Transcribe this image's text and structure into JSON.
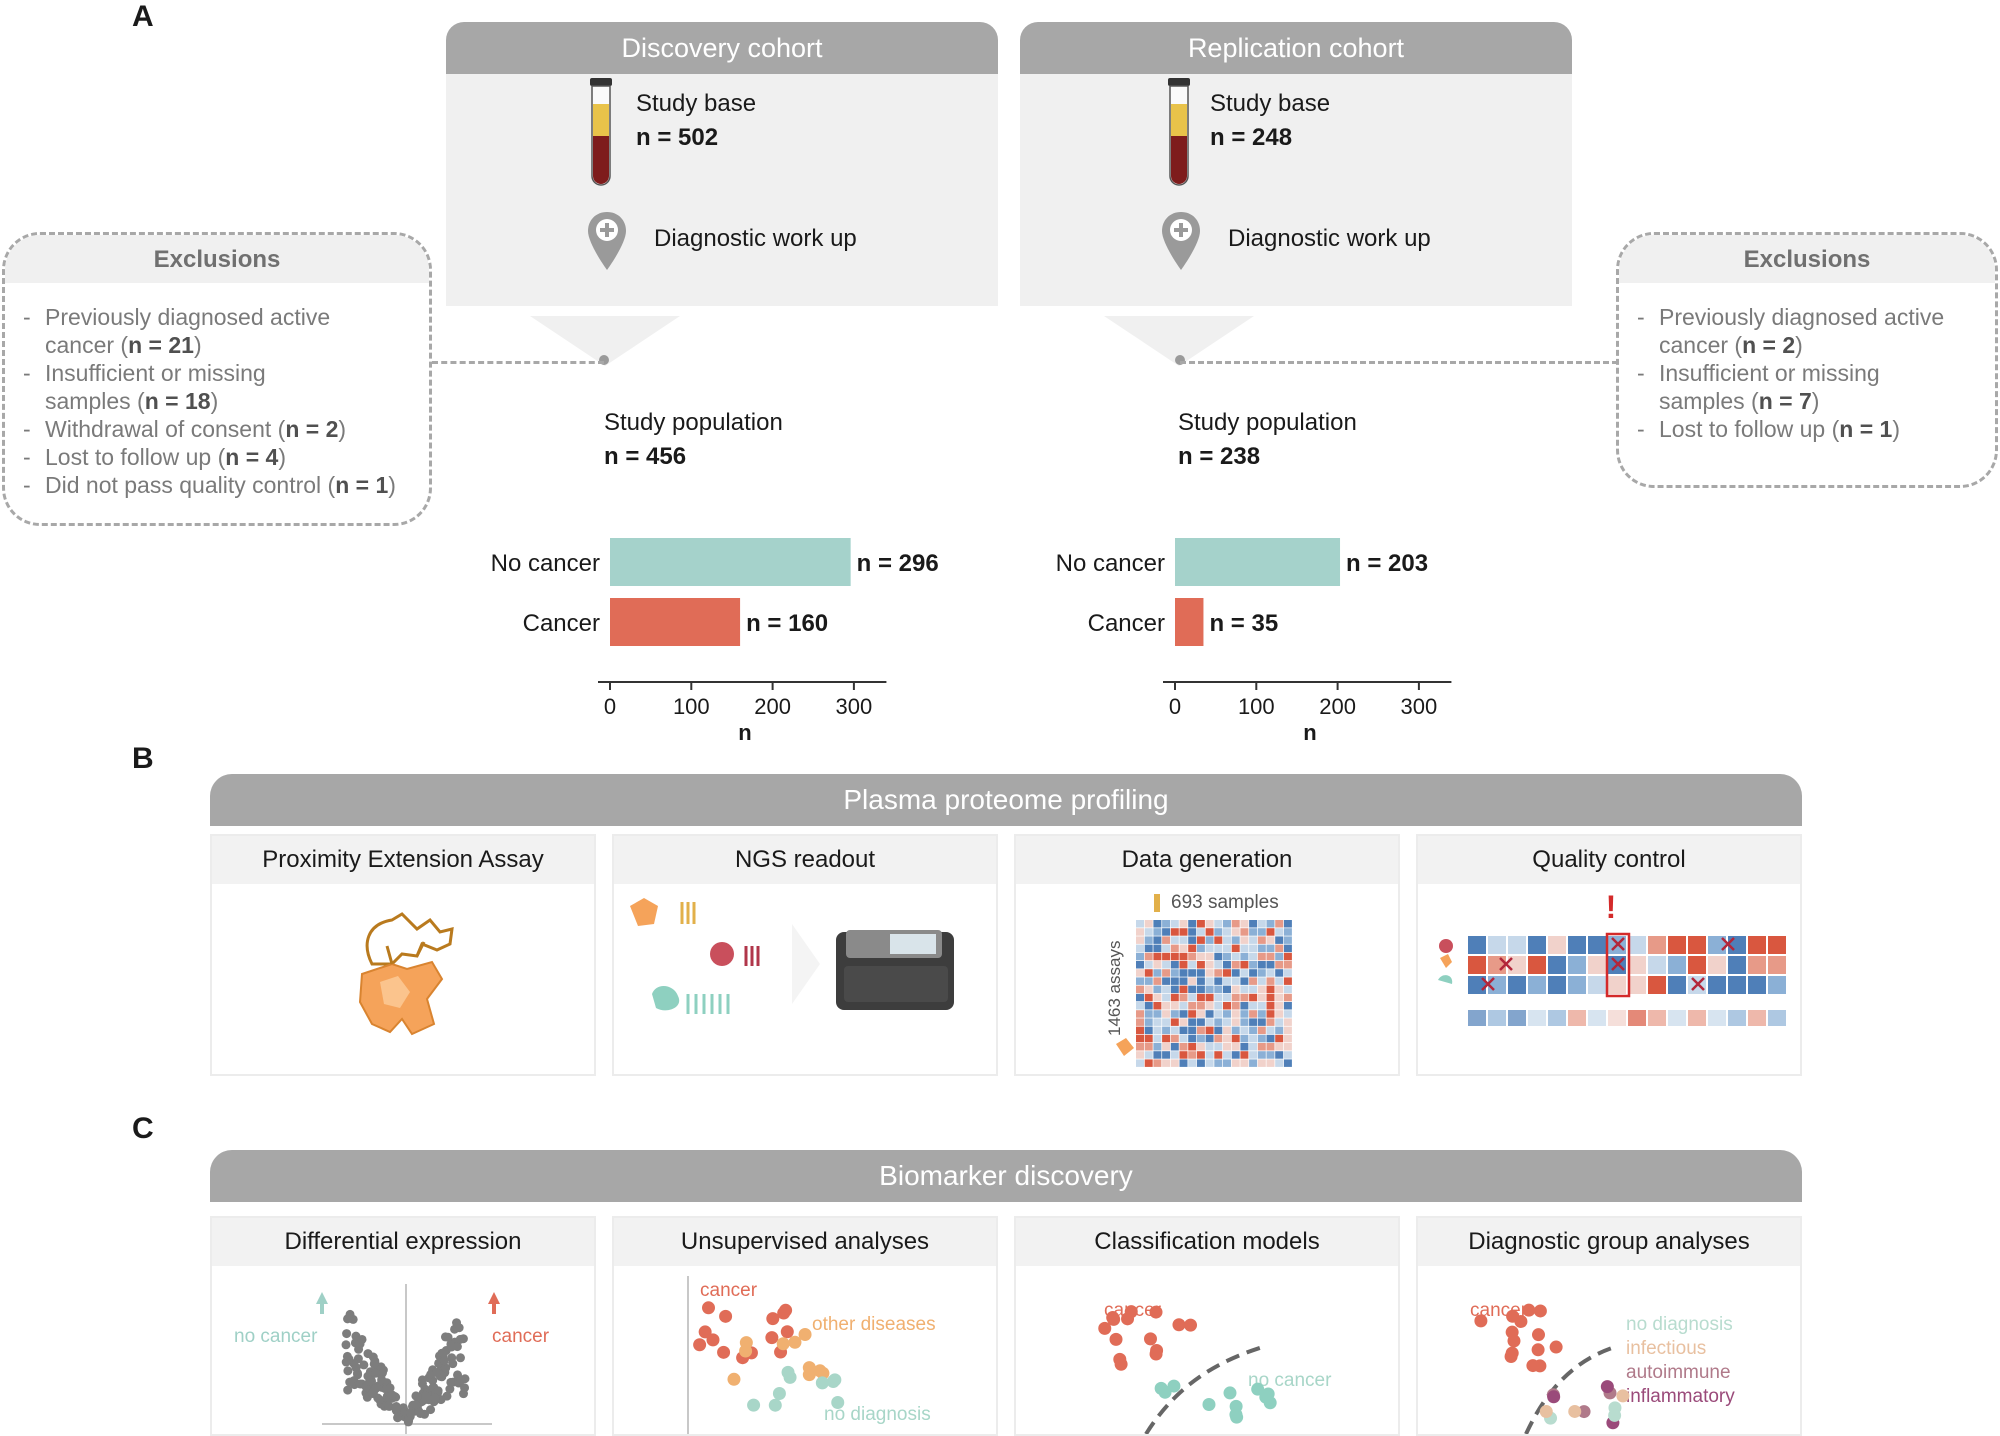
{
  "panels": {
    "a": "A",
    "b": "B",
    "c": "C"
  },
  "discovery": {
    "title": "Discovery cohort",
    "study_base_label": "Study base",
    "study_base_n": "n = 502",
    "workup_label": "Diagnostic work up",
    "population_label": "Study population",
    "population_n": "n = 456",
    "exclusions_title": "Exclusions",
    "exclusions": [
      {
        "lines": [
          {
            "text": "Previously diagnosed active"
          },
          {
            "text": "cancer (",
            "n": "n = 21",
            "end": ")"
          }
        ]
      },
      {
        "lines": [
          {
            "text": "Insufficient or missing"
          },
          {
            "text": "samples (",
            "n": "n = 18",
            "end": ")"
          }
        ]
      },
      {
        "lines": [
          {
            "text": "Withdrawal of consent (",
            "n": "n = 2",
            "end": ")"
          }
        ]
      },
      {
        "lines": [
          {
            "text": "Lost to follow up (",
            "n": "n = 4",
            "end": ")"
          }
        ]
      },
      {
        "lines": [
          {
            "text": "Did not pass quality control (",
            "n": "n = 1",
            "end": ")"
          }
        ]
      }
    ]
  },
  "replication": {
    "title": "Replication cohort",
    "study_base_label": "Study base",
    "study_base_n": "n = 248",
    "workup_label": "Diagnostic work up",
    "population_label": "Study population",
    "population_n": "n = 238",
    "exclusions_title": "Exclusions",
    "exclusions": [
      {
        "lines": [
          {
            "text": "Previously diagnosed active"
          },
          {
            "text": "cancer (",
            "n": "n = 2",
            "end": ")"
          }
        ]
      },
      {
        "lines": [
          {
            "text": "Insufficient or missing"
          },
          {
            "text": "samples (",
            "n": "n = 7",
            "end": ")"
          }
        ]
      },
      {
        "lines": [
          {
            "text": "Lost to follow up (",
            "n": "n = 1",
            "end": ")"
          }
        ]
      }
    ]
  },
  "colors": {
    "no_cancer": "#a5d2cb",
    "cancer": "#e06c57",
    "header_gray": "#a7a7a7",
    "light_gray": "#f0f0f0"
  },
  "chart_data": [
    {
      "type": "bar",
      "orientation": "horizontal",
      "categories": [
        "No cancer",
        "Cancer"
      ],
      "values": [
        296,
        160
      ],
      "value_labels": [
        "n = 296",
        "n = 160"
      ],
      "xlabel": "n",
      "xlim": [
        0,
        340
      ],
      "xticks": [
        "0",
        "100",
        "200",
        "300"
      ]
    },
    {
      "type": "bar",
      "orientation": "horizontal",
      "categories": [
        "No cancer",
        "Cancer"
      ],
      "values": [
        203,
        35
      ],
      "value_labels": [
        "n = 203",
        "n = 35"
      ],
      "xlabel": "n",
      "xlim": [
        0,
        340
      ],
      "xticks": [
        "0",
        "100",
        "200",
        "300"
      ]
    }
  ],
  "profiling": {
    "title": "Plasma proteome profiling",
    "cards": [
      "Proximity Extension Assay",
      "NGS readout",
      "Data generation",
      "Quality control"
    ],
    "samples_label": "693 samples",
    "assays_label": "1463 assays"
  },
  "biomarker": {
    "title": "Biomarker discovery",
    "cards": [
      "Differential expression",
      "Unsupervised analyses",
      "Classification models",
      "Diagnostic group analyses"
    ],
    "de_no_cancer": "no cancer",
    "de_cancer": "cancer",
    "ua_cancer": "cancer",
    "ua_other": "other diseases",
    "ua_no_diag": "no diagnosis",
    "cm_cancer": "cancer",
    "cm_no_cancer": "no cancer",
    "dg_cancer": "cancer",
    "dg_groups": [
      "no diagnosis",
      "infectious",
      "autoimmune",
      "inflammatory"
    ]
  }
}
